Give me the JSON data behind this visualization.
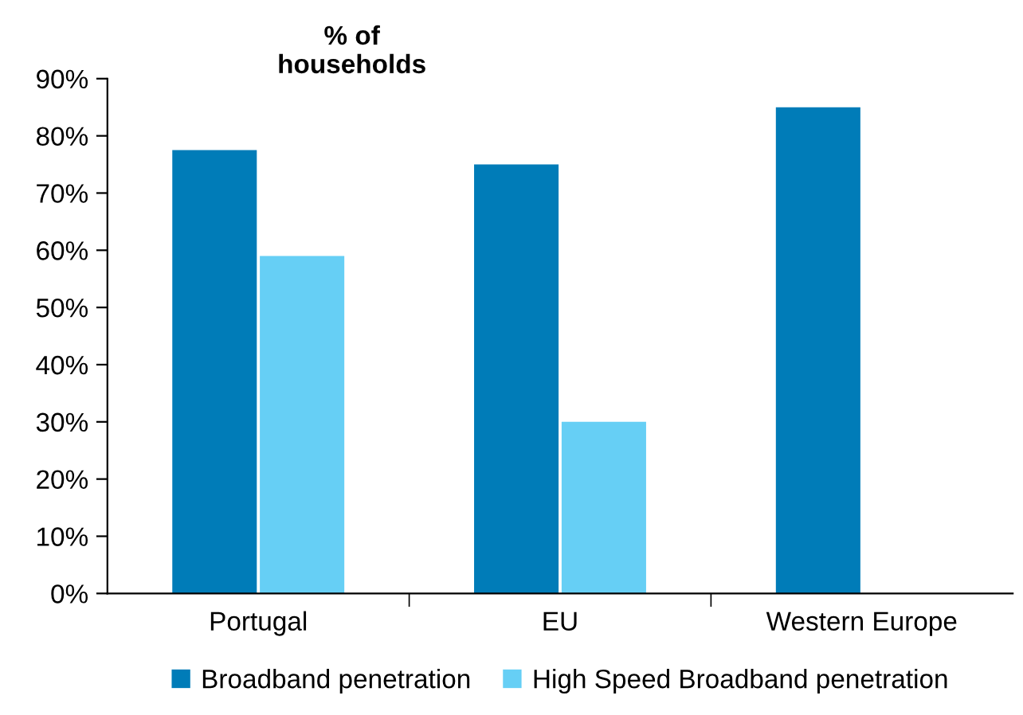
{
  "chart_data": {
    "type": "bar",
    "title": "% of\nhouseholds",
    "categories": [
      "Portugal",
      "EU",
      "Western Europe"
    ],
    "series": [
      {
        "name": "Broadband penetration",
        "color": "#007cb8",
        "values": [
          77.5,
          75,
          85
        ]
      },
      {
        "name": "High Speed Broadband penetration",
        "color": "#66cff5",
        "values": [
          59,
          30,
          null
        ]
      }
    ],
    "ylim": [
      0,
      90
    ],
    "yticks": [
      {
        "value": 0,
        "label": "0%"
      },
      {
        "value": 10,
        "label": "10%"
      },
      {
        "value": 20,
        "label": "20%"
      },
      {
        "value": 30,
        "label": "30%"
      },
      {
        "value": 40,
        "label": "40%"
      },
      {
        "value": 50,
        "label": "50%"
      },
      {
        "value": 60,
        "label": "60%"
      },
      {
        "value": 70,
        "label": "70%"
      },
      {
        "value": 80,
        "label": "80%"
      },
      {
        "value": 90,
        "label": "90%"
      }
    ],
    "grid": false,
    "legend": "bottom"
  }
}
